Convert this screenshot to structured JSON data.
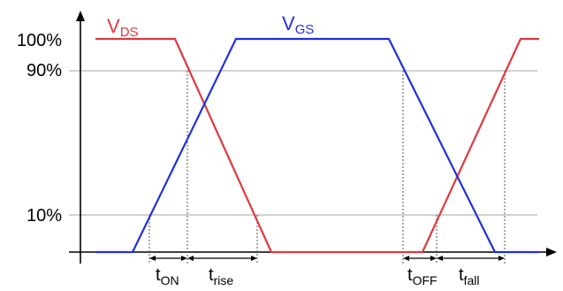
{
  "labels": {
    "y100": "100%",
    "y90": "90%",
    "y10": "10%"
  },
  "signals": {
    "vds": {
      "main": "V",
      "sub": "DS",
      "color": "#e0383e"
    },
    "vgs": {
      "main": "V",
      "sub": "GS",
      "color": "#1f2fe0"
    }
  },
  "intervals": {
    "t_on": {
      "main": "t",
      "sub": "ON"
    },
    "t_rise": {
      "main": "t",
      "sub": "rise"
    },
    "t_off": {
      "main": "t",
      "sub": "OFF"
    },
    "t_fall": {
      "main": "t",
      "sub": "fall"
    }
  },
  "colors": {
    "axis": "#000000",
    "gridline": "#a6a6a6",
    "marker": "#555555"
  }
}
